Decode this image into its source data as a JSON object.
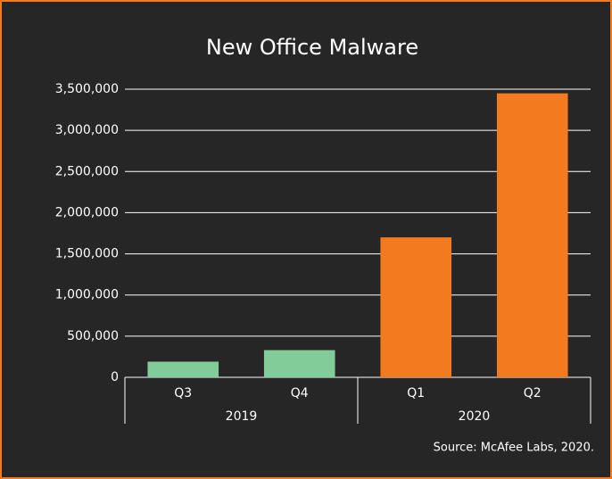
{
  "chart_data": {
    "type": "bar",
    "title": "New Office Malware",
    "groups": [
      {
        "name": "2019",
        "color": "#82cc99",
        "categories": [
          "Q3",
          "Q4"
        ],
        "values": [
          190000,
          330000
        ]
      },
      {
        "name": "2020",
        "color": "#f47a20",
        "categories": [
          "Q1",
          "Q2"
        ],
        "values": [
          1700000,
          3450000
        ]
      }
    ],
    "ylim": [
      0,
      3500000
    ],
    "yticks": [
      0,
      {
        "value": 500000,
        "label": "500,000"
      },
      {
        "value": 1000000,
        "label": "1,000,000"
      },
      {
        "value": 1500000,
        "label": "1,500,000"
      },
      {
        "value": 2000000,
        "label": "2,000,000"
      },
      {
        "value": 2500000,
        "label": "2,500,000"
      },
      {
        "value": 3000000,
        "label": "3,000,000"
      },
      {
        "value": 3500000,
        "label": "3,500,000"
      }
    ],
    "grid": true,
    "source": "Source: McAfee Labs, 2020."
  }
}
